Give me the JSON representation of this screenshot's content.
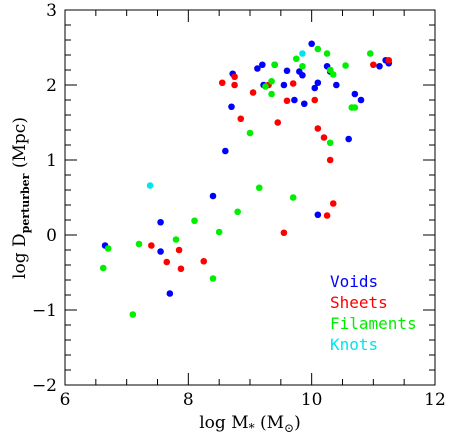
{
  "chart_data": {
    "type": "scatter",
    "xlim": [
      6,
      12
    ],
    "ylim": [
      -2,
      3
    ],
    "xticks": [
      6,
      8,
      10,
      12
    ],
    "yticks": [
      -2,
      -1,
      0,
      1,
      2,
      3
    ],
    "xtick_labels": [
      "6",
      "8",
      "10",
      "12"
    ],
    "ytick_labels": [
      "−2",
      "−1",
      "0",
      "1",
      "2",
      "3"
    ],
    "xlabel": {
      "main": "log M",
      "sub": "*",
      "rest": " (M",
      "sub2": "⊙",
      "close": ")"
    },
    "ylabel": {
      "main": "log D",
      "sub": "perturber",
      "rest": " (Mpc)"
    },
    "grid": false,
    "legend_position": "lower-right",
    "series": [
      {
        "name": "Voids",
        "color": "#0000ff",
        "points": [
          [
            6.65,
            -0.14
          ],
          [
            7.55,
            0.17
          ],
          [
            7.55,
            -0.22
          ],
          [
            7.7,
            -0.78
          ],
          [
            8.4,
            0.52
          ],
          [
            8.6,
            1.12
          ],
          [
            8.7,
            1.71
          ],
          [
            8.72,
            2.15
          ],
          [
            9.12,
            2.22
          ],
          [
            9.2,
            2.27
          ],
          [
            9.22,
            2.0
          ],
          [
            9.4,
            2.27
          ],
          [
            9.55,
            2.0
          ],
          [
            9.6,
            2.19
          ],
          [
            9.8,
            2.18
          ],
          [
            9.85,
            2.13
          ],
          [
            9.72,
            1.8
          ],
          [
            9.88,
            1.75
          ],
          [
            10.0,
            2.55
          ],
          [
            10.1,
            2.03
          ],
          [
            10.05,
            1.96
          ],
          [
            10.25,
            2.25
          ],
          [
            10.3,
            2.18
          ],
          [
            10.4,
            2.0
          ],
          [
            10.6,
            1.28
          ],
          [
            10.7,
            1.88
          ],
          [
            10.8,
            1.8
          ],
          [
            11.1,
            2.25
          ],
          [
            11.2,
            2.33
          ],
          [
            11.25,
            2.29
          ],
          [
            10.1,
            0.27
          ]
        ]
      },
      {
        "name": "Sheets",
        "color": "#ff0000",
        "points": [
          [
            7.4,
            -0.14
          ],
          [
            7.65,
            -0.36
          ],
          [
            7.85,
            -0.2
          ],
          [
            7.88,
            -0.45
          ],
          [
            8.25,
            -0.35
          ],
          [
            8.55,
            2.03
          ],
          [
            8.75,
            2.11
          ],
          [
            8.75,
            2.0
          ],
          [
            8.85,
            1.55
          ],
          [
            9.05,
            1.9
          ],
          [
            9.3,
            2.0
          ],
          [
            9.45,
            1.5
          ],
          [
            9.6,
            1.79
          ],
          [
            9.7,
            2.02
          ],
          [
            9.55,
            0.03
          ],
          [
            10.05,
            1.8
          ],
          [
            10.1,
            1.42
          ],
          [
            10.2,
            1.3
          ],
          [
            10.3,
            1.0
          ],
          [
            10.3,
            2.2
          ],
          [
            10.35,
            0.42
          ],
          [
            10.25,
            0.26
          ],
          [
            11.0,
            2.27
          ],
          [
            11.25,
            2.33
          ]
        ]
      },
      {
        "name": "Filaments",
        "color": "#00ee00",
        "points": [
          [
            6.62,
            -0.44
          ],
          [
            6.7,
            -0.18
          ],
          [
            7.1,
            -1.06
          ],
          [
            7.2,
            -0.12
          ],
          [
            7.8,
            -0.06
          ],
          [
            8.1,
            0.19
          ],
          [
            8.4,
            -0.58
          ],
          [
            8.5,
            0.04
          ],
          [
            8.8,
            0.31
          ],
          [
            9.0,
            1.36
          ],
          [
            9.15,
            0.63
          ],
          [
            9.25,
            1.98
          ],
          [
            9.35,
            1.88
          ],
          [
            9.35,
            2.05
          ],
          [
            9.4,
            2.27
          ],
          [
            9.7,
            0.5
          ],
          [
            9.75,
            2.35
          ],
          [
            9.85,
            2.25
          ],
          [
            10.1,
            2.48
          ],
          [
            10.25,
            2.42
          ],
          [
            10.3,
            2.2
          ],
          [
            10.35,
            2.14
          ],
          [
            10.3,
            1.23
          ],
          [
            10.55,
            2.26
          ],
          [
            10.65,
            1.7
          ],
          [
            10.95,
            2.42
          ],
          [
            10.7,
            1.7
          ]
        ]
      },
      {
        "name": "Knots",
        "color": "#00e5ee",
        "points": [
          [
            7.38,
            0.66
          ],
          [
            9.85,
            2.42
          ]
        ]
      }
    ]
  }
}
